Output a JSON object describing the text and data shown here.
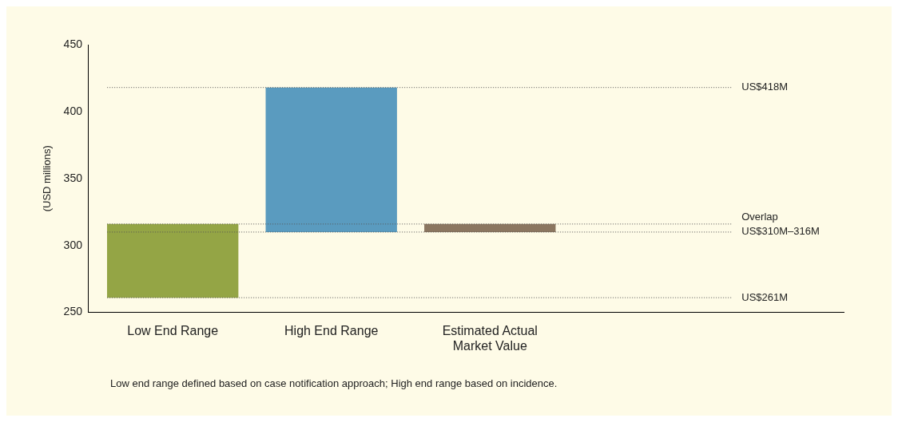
{
  "chart_data": {
    "type": "bar",
    "ylabel": "(USD millions)",
    "categories": [
      "Low End Range",
      "High End Range",
      "Estimated Actual Market Value"
    ],
    "values": [
      55,
      108,
      6
    ],
    "base": [
      261,
      310,
      310
    ],
    "colors": [
      "#94a545",
      "#5a9bbf",
      "#8b7660"
    ],
    "ylim": [
      250,
      450
    ],
    "yticks": [
      250,
      300,
      350,
      400,
      450
    ],
    "grid": false,
    "legend": false,
    "ref_lines": [
      {
        "axis": "y",
        "value": 418,
        "label": "US$418M",
        "color": "#555555",
        "line_style": "dotted"
      },
      {
        "axis": "y",
        "value": 316,
        "label": "Overlap",
        "color": "#555555",
        "line_style": "dotted"
      },
      {
        "axis": "y",
        "value": 310,
        "label": "US$310M–316M",
        "color": "#555555",
        "line_style": "dotted"
      },
      {
        "axis": "y",
        "value": 261,
        "label": "US$261M",
        "color": "#555555",
        "line_style": "dotted"
      }
    ],
    "annotations": [
      "Low end range defined based on case notification approach; High end range based on incidence."
    ]
  }
}
